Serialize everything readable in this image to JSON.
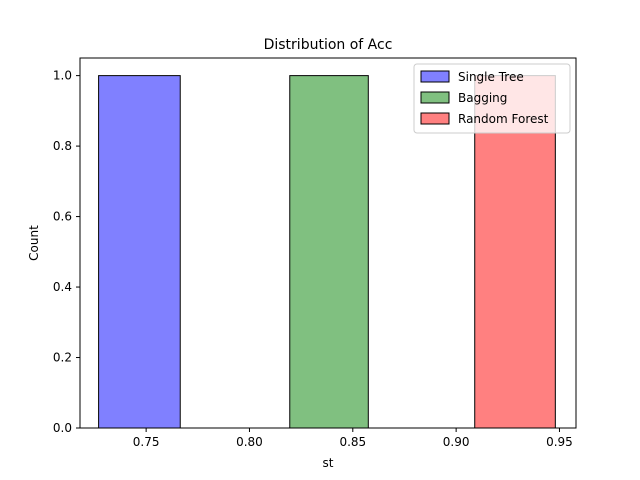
{
  "chart_data": {
    "type": "bar",
    "title": "Distribution of Acc",
    "xlabel": "st",
    "ylabel": "Count",
    "xlim": [
      0.718,
      0.958
    ],
    "ylim": [
      0,
      1.05
    ],
    "x_ticks": [
      0.75,
      0.8,
      0.85,
      0.9,
      0.95
    ],
    "x_tick_labels": [
      "0.75",
      "0.80",
      "0.85",
      "0.90",
      "0.95"
    ],
    "y_ticks": [
      0.0,
      0.2,
      0.4,
      0.6,
      0.8,
      1.0
    ],
    "y_tick_labels": [
      "0.0",
      "0.2",
      "0.4",
      "0.6",
      "0.8",
      "1.0"
    ],
    "grid": false,
    "legend_position": "top-right",
    "series": [
      {
        "name": "Single Tree",
        "bin_start": 0.727,
        "bin_end": 0.7665,
        "value": 1.0,
        "color": "#8080ff"
      },
      {
        "name": "Bagging",
        "bin_start": 0.8195,
        "bin_end": 0.8575,
        "value": 1.0,
        "color": "#80c080"
      },
      {
        "name": "Random Forest",
        "bin_start": 0.909,
        "bin_end": 0.948,
        "value": 1.0,
        "color": "#ff8080"
      }
    ]
  }
}
